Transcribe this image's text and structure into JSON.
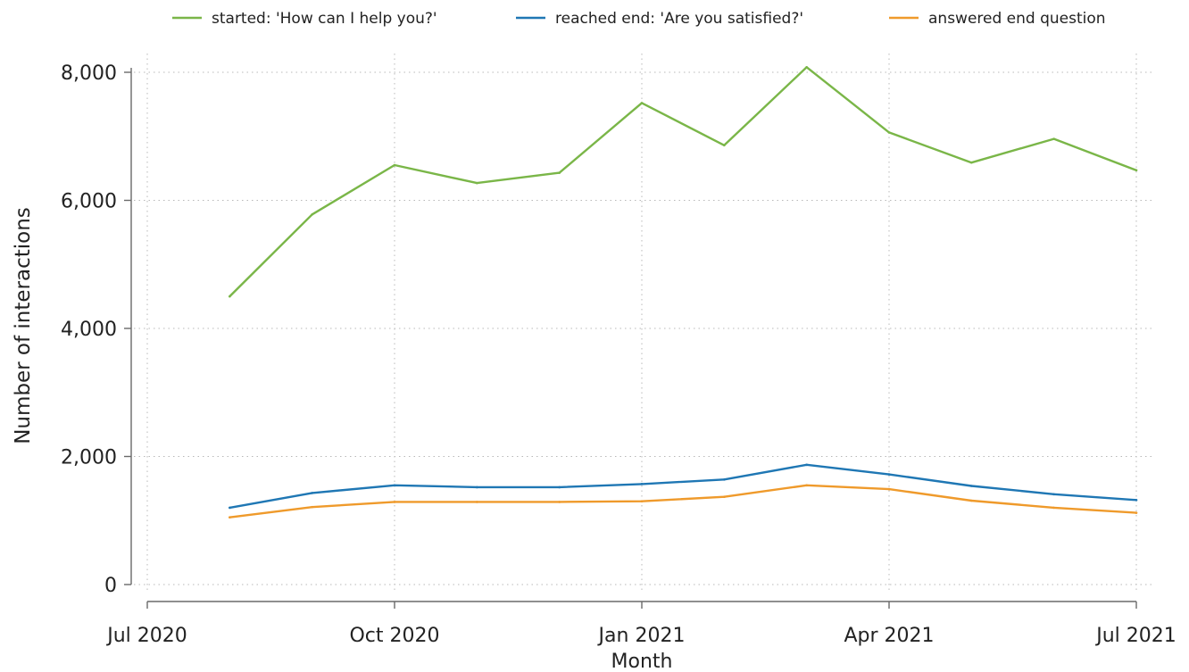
{
  "chart_data": {
    "type": "line",
    "xlabel": "Month",
    "ylabel": "Number of interactions",
    "x_dates": [
      "2020-08",
      "2020-09",
      "2020-10",
      "2020-11",
      "2020-12",
      "2021-01",
      "2021-02",
      "2021-03",
      "2021-04",
      "2021-05",
      "2021-06",
      "2021-07"
    ],
    "x_ticks": [
      {
        "date": "2020-07",
        "label": "Jul 2020"
      },
      {
        "date": "2020-10",
        "label": "Oct 2020"
      },
      {
        "date": "2021-01",
        "label": "Jan 2021"
      },
      {
        "date": "2021-04",
        "label": "Apr 2021"
      },
      {
        "date": "2021-07",
        "label": "Jul 2021"
      }
    ],
    "xlim": [
      "2020-07",
      "2021-07"
    ],
    "y_ticks": [
      {
        "value": 0,
        "label": "0"
      },
      {
        "value": 2000,
        "label": "2,000"
      },
      {
        "value": 4000,
        "label": "4,000"
      },
      {
        "value": 6000,
        "label": "6,000"
      },
      {
        "value": 8000,
        "label": "8,000"
      }
    ],
    "ylim": [
      0,
      8000
    ],
    "grid": true,
    "legend_position": "top",
    "series": [
      {
        "name": "started: 'How can I help you?'",
        "color": "#7ab648",
        "values": [
          4500,
          5780,
          6550,
          6270,
          6430,
          7520,
          6860,
          8080,
          7060,
          6590,
          6960,
          6470
        ]
      },
      {
        "name": "reached end: 'Are you satisfied?'",
        "color": "#1f77b4",
        "values": [
          1200,
          1430,
          1550,
          1520,
          1520,
          1570,
          1640,
          1870,
          1720,
          1540,
          1410,
          1320
        ]
      },
      {
        "name": "answered end question",
        "color": "#ef9a2b",
        "values": [
          1050,
          1210,
          1290,
          1290,
          1290,
          1300,
          1370,
          1550,
          1490,
          1310,
          1200,
          1120
        ]
      }
    ]
  }
}
